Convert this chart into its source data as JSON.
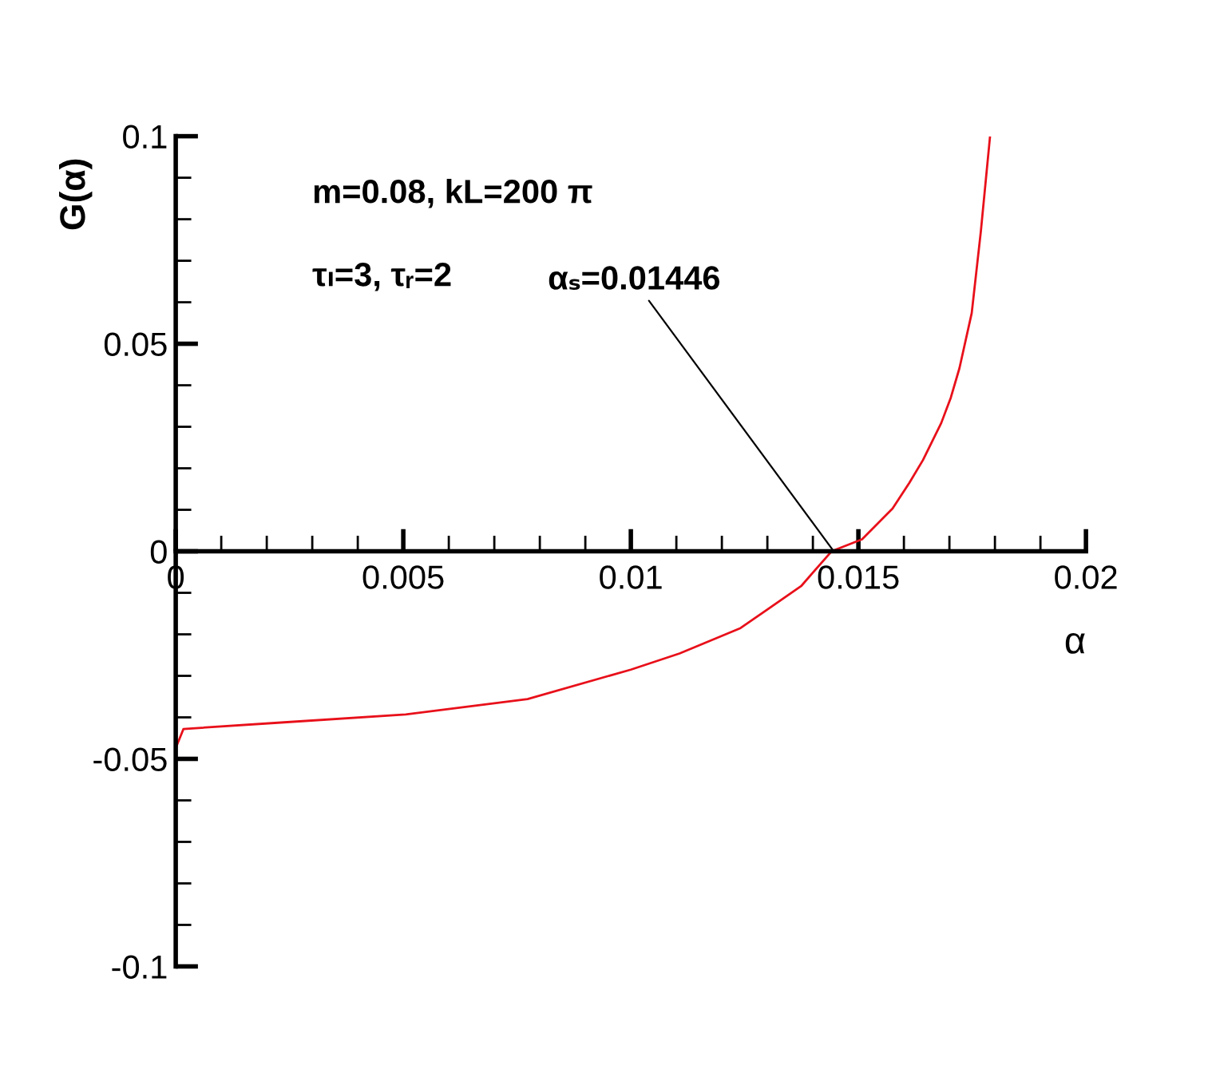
{
  "chart_data": {
    "type": "line",
    "xlabel": "α",
    "ylabel": "G(α)",
    "xlim": [
      0,
      0.02
    ],
    "ylim": [
      -0.1,
      0.1
    ],
    "xticks": [
      0,
      0.005,
      0.01,
      0.015,
      0.02
    ],
    "yticks": [
      -0.1,
      -0.05,
      0,
      0.05,
      0.1
    ],
    "grid": false,
    "legend": false,
    "marker": "none",
    "line_style": "solid",
    "series": [
      {
        "color": "#e8101a",
        "x": [
          0,
          0.00017,
          0.00238,
          0.00505,
          0.00773,
          0.01,
          0.01107,
          0.01241,
          0.01374,
          0.01441,
          0.01508,
          0.01575,
          0.01612,
          0.01642,
          0.01682,
          0.01703,
          0.01722,
          0.01749,
          0.01769,
          0.01789
        ],
        "values": [
          -0.0474,
          -0.0428,
          -0.0412,
          -0.0393,
          -0.0356,
          -0.0285,
          -0.0246,
          -0.0185,
          -0.0084,
          0,
          0.0029,
          0.0103,
          0.0165,
          0.022,
          0.0309,
          0.037,
          0.0441,
          0.0574,
          0.077,
          0.0997
        ]
      }
    ],
    "annotations": [
      "m=0.08, kL=200 π",
      "τₗ=3, τᵣ=2",
      {
        "text": "αₛ=0.01446",
        "x": 0.01446,
        "y": 0
      }
    ]
  }
}
